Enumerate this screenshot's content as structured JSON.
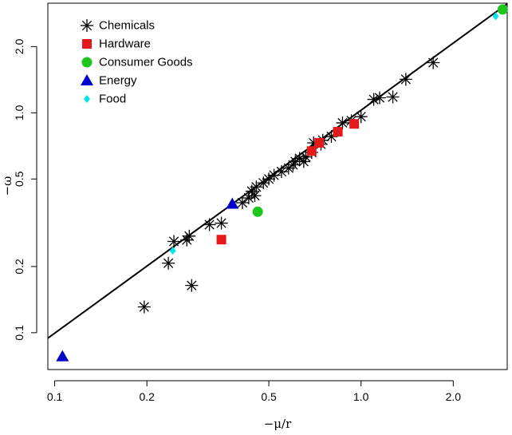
{
  "chart_data": {
    "type": "scatter",
    "scale": "log-log",
    "xlabel": "−μ/r",
    "ylabel": "−ω",
    "xlim": [
      0.095,
      3.0
    ],
    "ylim": [
      0.068,
      3.15
    ],
    "x_ticks": [
      0.1,
      0.2,
      0.5,
      1.0,
      2.0
    ],
    "x_tick_labels": [
      "0.1",
      "0.2",
      "0.5",
      "1.0",
      "2.0"
    ],
    "y_ticks": [
      0.1,
      0.2,
      0.5,
      1.0,
      2.0
    ],
    "y_tick_labels": [
      "0.1",
      "0.2",
      "0.5",
      "1.0",
      "2.0"
    ],
    "grid": false,
    "legend_position": "top-left",
    "fit_line": {
      "color": "#000000",
      "points": [
        [
          0.095,
          0.0944
        ],
        [
          3.0,
          3.13
        ]
      ]
    },
    "series": [
      {
        "name": "Chemicals",
        "marker": "asterisk",
        "color": "#000000",
        "points": [
          [
            0.196,
            0.131
          ],
          [
            0.28,
            0.164
          ],
          [
            0.235,
            0.207
          ],
          [
            0.245,
            0.26
          ],
          [
            0.27,
            0.264
          ],
          [
            0.275,
            0.275
          ],
          [
            0.32,
            0.31
          ],
          [
            0.35,
            0.315
          ],
          [
            0.41,
            0.39
          ],
          [
            0.43,
            0.41
          ],
          [
            0.45,
            0.42
          ],
          [
            0.44,
            0.44
          ],
          [
            0.455,
            0.46
          ],
          [
            0.48,
            0.48
          ],
          [
            0.5,
            0.5
          ],
          [
            0.52,
            0.52
          ],
          [
            0.55,
            0.54
          ],
          [
            0.58,
            0.56
          ],
          [
            0.6,
            0.58
          ],
          [
            0.61,
            0.6
          ],
          [
            0.63,
            0.62
          ],
          [
            0.65,
            0.6
          ],
          [
            0.66,
            0.63
          ],
          [
            0.69,
            0.66
          ],
          [
            0.7,
            0.73
          ],
          [
            0.74,
            0.72
          ],
          [
            0.75,
            0.75
          ],
          [
            0.8,
            0.78
          ],
          [
            0.87,
            0.9
          ],
          [
            0.93,
            0.92
          ],
          [
            1.0,
            0.96
          ],
          [
            1.1,
            1.15
          ],
          [
            1.15,
            1.17
          ],
          [
            1.27,
            1.18
          ],
          [
            1.4,
            1.42
          ],
          [
            1.72,
            1.69
          ]
        ]
      },
      {
        "name": "Hardware",
        "marker": "square",
        "color": "#e31a1c",
        "points": [
          [
            0.35,
            0.265
          ],
          [
            0.69,
            0.67
          ],
          [
            0.73,
            0.73
          ],
          [
            0.84,
            0.82
          ],
          [
            0.95,
            0.89
          ]
        ]
      },
      {
        "name": "Consumer Goods",
        "marker": "circle",
        "color": "#1ec51e",
        "points": [
          [
            0.46,
            0.355
          ],
          [
            2.9,
            2.95
          ]
        ]
      },
      {
        "name": "Energy",
        "marker": "triangle",
        "color": "#0000cc",
        "points": [
          [
            0.106,
            0.078
          ],
          [
            0.38,
            0.385
          ]
        ]
      },
      {
        "name": "Food",
        "marker": "diamond",
        "color": "#00e5ee",
        "points": [
          [
            0.243,
            0.236
          ],
          [
            2.75,
            2.75
          ]
        ]
      }
    ]
  }
}
